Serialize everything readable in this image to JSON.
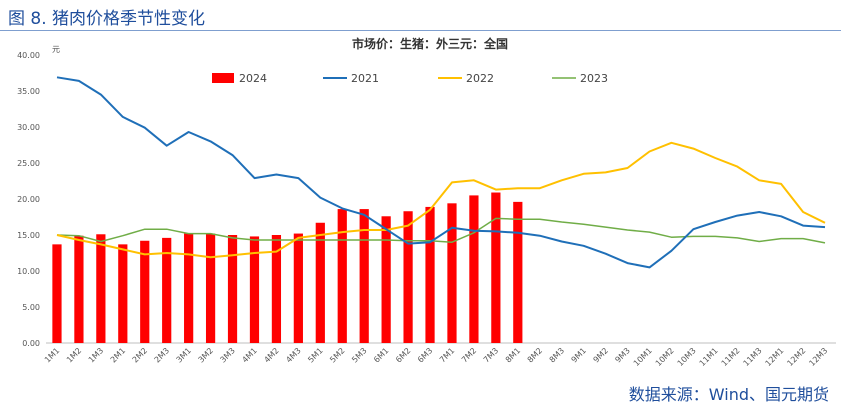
{
  "figure_title": "图 8. 猪肉价格季节性变化",
  "source": "数据来源：Wind、国元期货",
  "colors": {
    "s2024": "#ff0000",
    "s2021": "#1f6fb8",
    "s2022": "#ffc000",
    "s2023": "#70ad47",
    "axis": "#bfbfbf"
  },
  "chart_data": {
    "type": "bar+line",
    "title": "市场价：生猪：外三元：全国",
    "ylabel": "元",
    "ylim": [
      0,
      40
    ],
    "yticks": [
      "0.00",
      "5.00",
      "10.00",
      "15.00",
      "20.00",
      "25.00",
      "30.00",
      "35.00",
      "40.00"
    ],
    "legend_position": "top",
    "categories": [
      "1M1",
      "1M2",
      "1M3",
      "2M1",
      "2M2",
      "2M3",
      "3M1",
      "3M2",
      "3M3",
      "4M1",
      "4M2",
      "4M3",
      "5M1",
      "5M2",
      "5M3",
      "6M1",
      "6M2",
      "6M3",
      "7M1",
      "7M2",
      "7M3",
      "8M1",
      "8M2",
      "8M3",
      "9M1",
      "9M2",
      "9M3",
      "10M1",
      "10M2",
      "10M3",
      "11M1",
      "11M2",
      "11M3",
      "12M1",
      "12M2",
      "12M3"
    ],
    "bar_series": {
      "name": "2024",
      "values": [
        13.7,
        14.9,
        15.1,
        13.7,
        14.2,
        14.6,
        15.2,
        15.2,
        15.0,
        14.8,
        15.0,
        15.2,
        16.7,
        18.6,
        18.6,
        17.6,
        18.3,
        18.9,
        19.4,
        20.5,
        20.9,
        19.6
      ]
    },
    "line_series": [
      {
        "name": "2021",
        "values": [
          36.9,
          36.4,
          34.5,
          31.4,
          29.9,
          27.4,
          29.3,
          28.0,
          26.1,
          22.9,
          23.4,
          22.9,
          20.2,
          18.7,
          17.8,
          15.8,
          13.8,
          14.0,
          16.0,
          15.6,
          15.5,
          15.3,
          14.9,
          14.1,
          13.5,
          12.4,
          11.1,
          10.5,
          12.8,
          15.8,
          16.8,
          17.7,
          18.2,
          17.6,
          16.3,
          16.1
        ]
      },
      {
        "name": "2022",
        "values": [
          15.0,
          14.3,
          13.7,
          13.0,
          12.3,
          12.5,
          12.3,
          11.9,
          12.2,
          12.5,
          12.7,
          14.6,
          15.0,
          15.4,
          15.7,
          15.7,
          16.3,
          18.5,
          22.3,
          22.6,
          21.3,
          21.5,
          21.5,
          22.6,
          23.5,
          23.7,
          24.3,
          26.6,
          27.8,
          27.0,
          25.7,
          24.5,
          22.6,
          22.1,
          18.2,
          16.7
        ]
      },
      {
        "name": "2023",
        "values": [
          15.0,
          14.9,
          14.1,
          14.9,
          15.8,
          15.8,
          15.2,
          15.2,
          14.6,
          14.3,
          14.3,
          14.3,
          14.3,
          14.3,
          14.3,
          14.3,
          14.2,
          14.2,
          14.0,
          15.3,
          17.3,
          17.2,
          17.2,
          16.8,
          16.5,
          16.1,
          15.7,
          15.4,
          14.7,
          14.8,
          14.8,
          14.6,
          14.1,
          14.5,
          14.5,
          13.9
        ]
      }
    ]
  }
}
